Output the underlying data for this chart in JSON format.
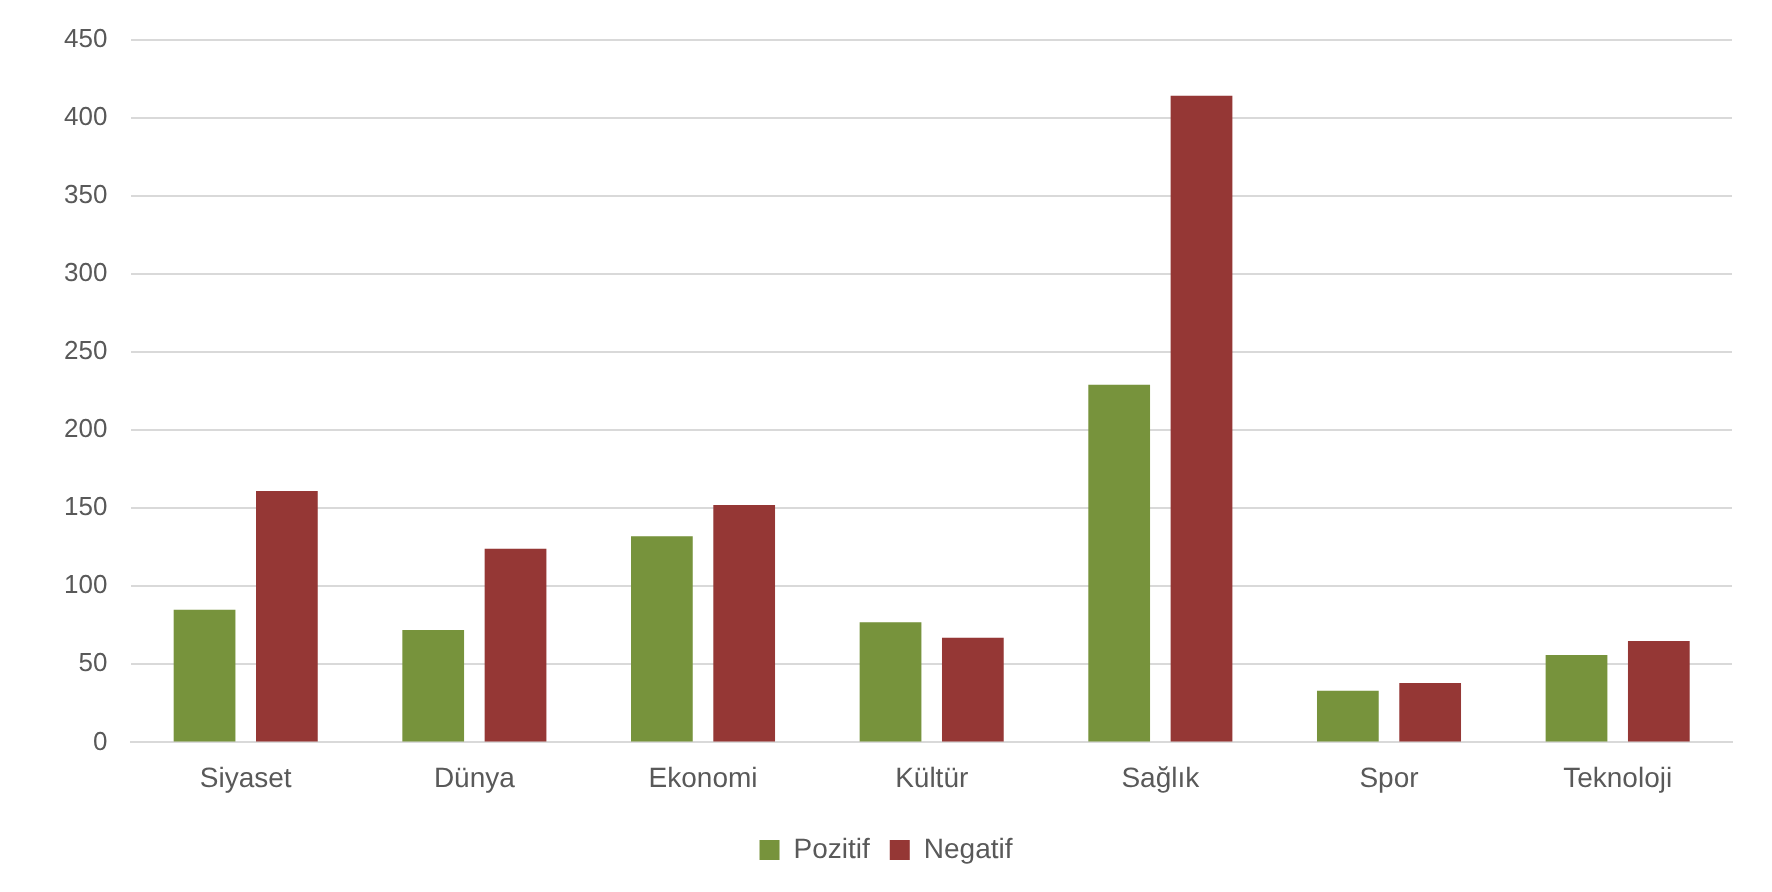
{
  "chart_data": {
    "type": "bar",
    "categories": [
      "Siyaset",
      "Dünya",
      "Ekonomi",
      "Kültür",
      "Sağlık",
      "Spor",
      "Teknoloji"
    ],
    "series": [
      {
        "name": "Pozitif",
        "color": "#77933c",
        "values": [
          85,
          72,
          132,
          77,
          229,
          33,
          56
        ]
      },
      {
        "name": "Negatif",
        "color": "#953735",
        "values": [
          161,
          124,
          152,
          67,
          414,
          38,
          65
        ]
      }
    ],
    "ylim": [
      0,
      450
    ],
    "yticks": [
      0,
      50,
      100,
      150,
      200,
      250,
      300,
      350,
      400,
      450
    ],
    "grid": "y",
    "legend": "bottom"
  }
}
